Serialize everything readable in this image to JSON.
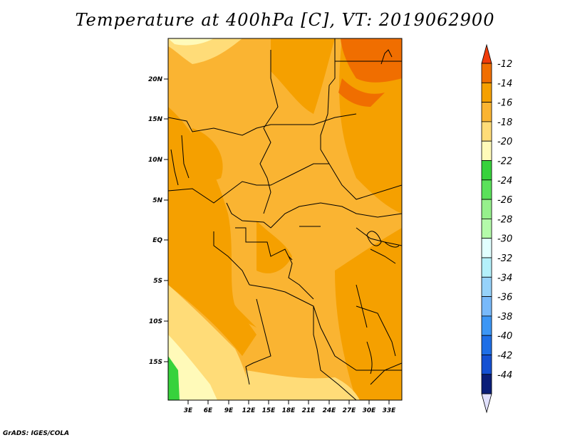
{
  "title": "Temperature at 400hPa [C], VT: 2019062900",
  "credit": "GrADS: IGES/COLA",
  "lat_ticks": [
    "20N",
    "15N",
    "10N",
    "5N",
    "EQ",
    "5S",
    "10S",
    "15S"
  ],
  "lon_ticks": [
    "3E",
    "6E",
    "9E",
    "12E",
    "15E",
    "18E",
    "21E",
    "24E",
    "27E",
    "30E",
    "33E"
  ],
  "colorbar": {
    "labels": [
      "-12",
      "-14",
      "-16",
      "-18",
      "-20",
      "-22",
      "-24",
      "-26",
      "-28",
      "-30",
      "-32",
      "-34",
      "-36",
      "-38",
      "-40",
      "-42",
      "-44"
    ],
    "colors": [
      "#f03c0a",
      "#f06e00",
      "#f5a000",
      "#fab432",
      "#ffdc78",
      "#fffab9",
      "#37d23c",
      "#5ae15a",
      "#96f08c",
      "#b4faaa",
      "#e1ffff",
      "#b4f0fa",
      "#96d2fa",
      "#78b9fa",
      "#3c96f5",
      "#1e6ee6",
      "#1450d2",
      "#0a1e78",
      "#e1e1ff"
    ]
  },
  "map": {
    "variable": "Temperature at 400hPa",
    "unit": "C",
    "valid_time": "2019062900",
    "lon_range": [
      "1E",
      "34E"
    ],
    "lat_range": [
      "19S",
      "24.5N"
    ]
  }
}
